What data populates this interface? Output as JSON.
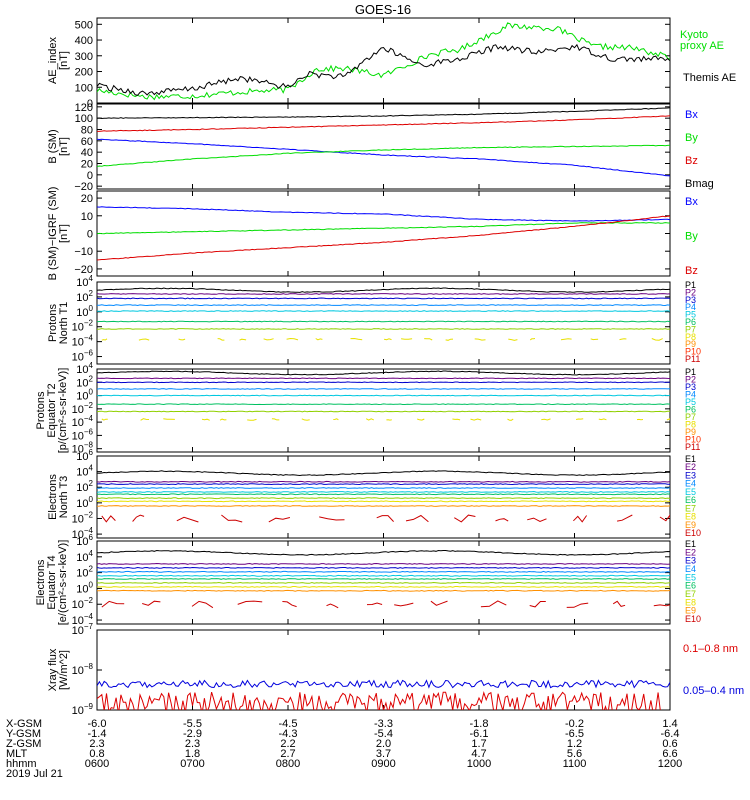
{
  "title": "GOES-16",
  "time_axis": {
    "start_hhmm": "0600",
    "end_hhmm": "1200"
  },
  "footer": {
    "rows": [
      {
        "label": "X-GSM",
        "values": [
          "-6.0",
          "-5.5",
          "-4.5",
          "-3.3",
          "-1.8",
          "-0.2",
          "1.4"
        ]
      },
      {
        "label": "Y-GSM",
        "values": [
          "-1.4",
          "-2.9",
          "-4.3",
          "-5.4",
          "-6.1",
          "-6.5",
          "-6.4"
        ]
      },
      {
        "label": "Z-GSM",
        "values": [
          "2.3",
          "2.3",
          "2.2",
          "2.0",
          "1.7",
          "1.2",
          "0.6"
        ]
      },
      {
        "label": "MLT",
        "values": [
          "0.8",
          "1.8",
          "2.7",
          "3.7",
          "4.7",
          "5.6",
          "6.6"
        ]
      },
      {
        "label": "hhmm",
        "values": [
          "0600",
          "0700",
          "0800",
          "0900",
          "1000",
          "1100",
          "1200"
        ]
      }
    ],
    "date": "2019 Jul 21"
  },
  "chart_data": [
    {
      "type": "line",
      "ylabel": [
        "AE_index",
        "[nT]"
      ],
      "yticks": [
        "500",
        "400",
        "300",
        "200",
        "100",
        "0"
      ],
      "ylim": [
        0,
        540
      ],
      "series": [
        {
          "name": "Kyoto proxy AE",
          "color": "#00dd00",
          "x": [
            0,
            0.5,
            1,
            1.5,
            2,
            2.3,
            2.6,
            3,
            3.5,
            3.8,
            4.3,
            4.8,
            5.2,
            5.6,
            6
          ],
          "y": [
            80,
            40,
            45,
            70,
            85,
            215,
            220,
            175,
            310,
            340,
            490,
            475,
            360,
            350,
            290
          ]
        },
        {
          "name": "Themis AE",
          "color": "#000000",
          "x": [
            0,
            0.5,
            1,
            1.5,
            2,
            2.2,
            2.6,
            2.8,
            3,
            3.4,
            3.8,
            4.2,
            4.6,
            5,
            5.4,
            6
          ],
          "y": [
            110,
            60,
            90,
            160,
            100,
            185,
            165,
            270,
            350,
            240,
            280,
            360,
            320,
            360,
            280,
            280
          ]
        }
      ]
    },
    {
      "type": "line",
      "ylabel": [
        "B (SM)",
        "[nT]"
      ],
      "yticks": [
        "120",
        "100",
        "80",
        "60",
        "40",
        "20",
        "0",
        "−20"
      ],
      "ylim": [
        -25,
        125
      ],
      "series": [
        {
          "name": "Bx",
          "color": "#0000ff",
          "x": [
            0,
            1,
            2,
            3,
            4,
            5,
            6
          ],
          "y": [
            63,
            55,
            45,
            35,
            28,
            17,
            -2
          ]
        },
        {
          "name": "By",
          "color": "#00dd00",
          "x": [
            0,
            1,
            2,
            3,
            4,
            5,
            6
          ],
          "y": [
            15,
            28,
            38,
            44,
            48,
            50,
            52
          ]
        },
        {
          "name": "Bz",
          "color": "#dd0000",
          "x": [
            0,
            1,
            2,
            3,
            4,
            5,
            6
          ],
          "y": [
            77,
            80,
            84,
            88,
            92,
            97,
            104
          ]
        },
        {
          "name": "Bmag",
          "color": "#000000",
          "x": [
            0,
            1,
            2,
            3,
            4,
            5,
            6
          ],
          "y": [
            100,
            101,
            102,
            104,
            107,
            112,
            118
          ]
        }
      ]
    },
    {
      "type": "line",
      "ylabel": [
        "B (SM)−IGRF (SM)",
        "[nT]"
      ],
      "yticks": [
        "20",
        "10",
        "0",
        "−10",
        "−20"
      ],
      "ylim": [
        -24,
        24
      ],
      "series": [
        {
          "name": "Bx",
          "color": "#0000ff",
          "x": [
            0,
            1,
            2,
            3,
            4,
            5,
            6
          ],
          "y": [
            15,
            14,
            12,
            11,
            8,
            7,
            8
          ]
        },
        {
          "name": "By",
          "color": "#00dd00",
          "x": [
            0,
            1,
            2,
            3,
            4,
            5,
            6
          ],
          "y": [
            0,
            1,
            2,
            3,
            4,
            6,
            6
          ]
        },
        {
          "name": "Bz",
          "color": "#dd0000",
          "x": [
            0,
            1,
            2,
            3,
            4,
            5,
            6
          ],
          "y": [
            -15,
            -11,
            -8,
            -5,
            -1,
            4,
            10
          ]
        }
      ]
    },
    {
      "type": "line",
      "log": true,
      "ylabel": [
        "Protons",
        "North T1"
      ],
      "yticks": [
        "10^4",
        "10^2",
        "10^0",
        "10^−2",
        "10^−4",
        "10^−6"
      ],
      "ylim_exp": [
        -7,
        4
      ],
      "series": [
        {
          "name": "P1",
          "color": "#000000",
          "y_exp": 2.9
        },
        {
          "name": "P2",
          "color": "#6a0080",
          "y_exp": 2.4
        },
        {
          "name": "P3",
          "color": "#0000cc",
          "y_exp": 1.8
        },
        {
          "name": "P4",
          "color": "#0088ff",
          "y_exp": 0.9
        },
        {
          "name": "P5",
          "color": "#00c8e0",
          "y_exp": 0.1
        },
        {
          "name": "P6",
          "color": "#00c060",
          "y_exp": -1.3
        },
        {
          "name": "P7",
          "color": "#90d000",
          "y_exp": -2.3
        },
        {
          "name": "P8",
          "color": "#e8e000",
          "y_exp": -3.7
        },
        {
          "name": "P9",
          "color": "#ff9000"
        },
        {
          "name": "P10",
          "color": "#ff3000"
        },
        {
          "name": "P11",
          "color": "#cc0000"
        }
      ]
    },
    {
      "type": "line",
      "log": true,
      "ylabel": [
        "Protons",
        "Equator T2",
        "[p/(cm²-s-sr-keV)]"
      ],
      "yticks": [
        "10^4",
        "10^2",
        "10^0",
        "10^−2",
        "10^−4",
        "10^−6",
        "10^−8"
      ],
      "ylim_exp": [
        -8.5,
        4
      ],
      "series": [
        {
          "name": "P1",
          "color": "#000000",
          "y_exp": 3.4
        },
        {
          "name": "P2",
          "color": "#6a0080",
          "y_exp": 2.6
        },
        {
          "name": "P3",
          "color": "#0000cc",
          "y_exp": 2.0
        },
        {
          "name": "P4",
          "color": "#0088ff",
          "y_exp": 1.0
        },
        {
          "name": "P5",
          "color": "#00c8e0",
          "y_exp": 0.0
        },
        {
          "name": "P6",
          "color": "#00c060",
          "y_exp": -1.3
        },
        {
          "name": "P7",
          "color": "#90d000",
          "y_exp": -2.4
        },
        {
          "name": "P8",
          "color": "#e8e000",
          "y_exp": -3.6
        },
        {
          "name": "P9",
          "color": "#ff9000"
        },
        {
          "name": "P10",
          "color": "#ff3000"
        },
        {
          "name": "P11",
          "color": "#cc0000"
        }
      ]
    },
    {
      "type": "line",
      "log": true,
      "ylabel": [
        "Electrons",
        "North T3"
      ],
      "yticks": [
        "10^6",
        "10^4",
        "10^2",
        "10^0",
        "10^−2",
        "10^−4"
      ],
      "ylim_exp": [
        -4.5,
        6
      ],
      "series": [
        {
          "name": "E1",
          "color": "#000000",
          "y_exp": 3.8
        },
        {
          "name": "E2",
          "color": "#6a0080",
          "y_exp": 2.7
        },
        {
          "name": "E3",
          "color": "#0000cc",
          "y_exp": 2.4
        },
        {
          "name": "E4",
          "color": "#0088ff",
          "y_exp": 1.9
        },
        {
          "name": "E5",
          "color": "#00c8e0",
          "y_exp": 1.4
        },
        {
          "name": "E6",
          "color": "#00c060",
          "y_exp": 1.1
        },
        {
          "name": "E7",
          "color": "#90d000",
          "y_exp": 0.6
        },
        {
          "name": "E8",
          "color": "#e8e000",
          "y_exp": 0.2
        },
        {
          "name": "E9",
          "color": "#ff9000",
          "y_exp": -0.4
        },
        {
          "name": "E10",
          "color": "#cc0000",
          "y_exp": -2.0
        }
      ]
    },
    {
      "type": "line",
      "log": true,
      "ylabel": [
        "Electrons",
        "Equator T4",
        "[e/(cm²-s-sr-keV)]"
      ],
      "yticks": [
        "10^6",
        "10^4",
        "10^2",
        "10^0",
        "10^−2",
        "10^−4"
      ],
      "ylim_exp": [
        -4.5,
        6
      ],
      "series": [
        {
          "name": "E1",
          "color": "#000000",
          "y_exp": 4.5
        },
        {
          "name": "E2",
          "color": "#6a0080",
          "y_exp": 3.1
        },
        {
          "name": "E3",
          "color": "#0000cc",
          "y_exp": 2.6
        },
        {
          "name": "E4",
          "color": "#0088ff",
          "y_exp": 2.1
        },
        {
          "name": "E5",
          "color": "#00c8e0",
          "y_exp": 1.6
        },
        {
          "name": "E6",
          "color": "#00c060",
          "y_exp": 1.2
        },
        {
          "name": "E7",
          "color": "#90d000",
          "y_exp": 0.7
        },
        {
          "name": "E8",
          "color": "#e8e000",
          "y_exp": 0.2
        },
        {
          "name": "E9",
          "color": "#ff9000",
          "y_exp": -0.3
        },
        {
          "name": "E10",
          "color": "#cc0000",
          "y_exp": -2.0
        }
      ]
    },
    {
      "type": "line",
      "log": true,
      "ylabel": [
        "Xray flux",
        "[W/m^2]"
      ],
      "yticks": [
        "10^−7",
        "10^−8",
        "10^−9"
      ],
      "ylim_exp": [
        -9,
        -7
      ],
      "series": [
        {
          "name": "0.1–0.8 nm",
          "color": "#dd0000",
          "y_exp": -8.85
        },
        {
          "name": "0.05–0.4 nm",
          "color": "#0000dd",
          "y_exp": -8.35
        }
      ]
    }
  ]
}
